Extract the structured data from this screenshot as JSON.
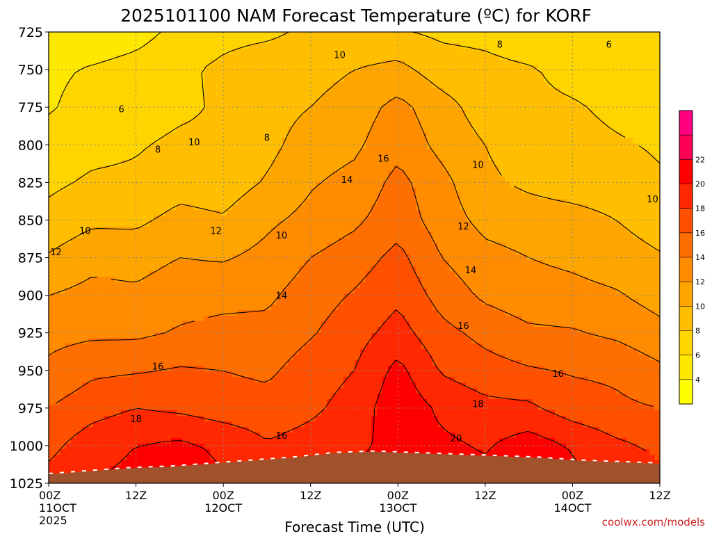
{
  "title": "2025101100 NAM Forecast Temperature (ºC) for KORF",
  "xlabel": "Forecast Time (UTC)",
  "credit": "coolwx.com/models",
  "colors": {
    "terrain": "#a0522d",
    "contour_line": "#000000",
    "grid": "#888888"
  },
  "chart_data": {
    "type": "heatmap",
    "title": "2025101100 NAM Forecast Temperature (ºC) for KORF",
    "xlabel": "Forecast Time (UTC)",
    "ylabel": "",
    "grid": true,
    "legend_placement": "right",
    "y_levels": [
      725,
      750,
      775,
      800,
      825,
      850,
      875,
      900,
      925,
      950,
      975,
      1000,
      1025
    ],
    "ylim": [
      725,
      1025
    ],
    "x_hours": [
      0,
      12,
      24,
      36,
      48,
      60,
      72,
      84
    ],
    "xlim": [
      0,
      84
    ],
    "x_tick_labels": [
      [
        "00Z",
        "11OCT",
        "2025"
      ],
      [
        "12Z"
      ],
      [
        "00Z",
        "12OCT"
      ],
      [
        "12Z"
      ],
      [
        "00Z",
        "13OCT"
      ],
      [
        "12Z"
      ],
      [
        "00Z",
        "14OCT"
      ],
      [
        "12Z"
      ]
    ],
    "colorbar": {
      "levels": [
        2,
        4,
        6,
        8,
        10,
        12,
        14,
        16,
        18,
        20,
        22,
        24
      ],
      "labels": [
        "4",
        "6",
        "8",
        "10",
        "12",
        "14",
        "16",
        "18",
        "20",
        "22"
      ],
      "colors": [
        "#ffff00",
        "#ffe800",
        "#ffd500",
        "#ffbf00",
        "#ffa500",
        "#ff8c00",
        "#ff6e00",
        "#ff5000",
        "#ff2800",
        "#ff0000",
        "#ff0055",
        "#ff0080"
      ]
    },
    "temperature_C": [
      [
        5.5,
        4.5,
        5.2,
        6.6,
        7.4,
        7.6,
        8.4,
        8.4,
        8.2,
        7.6,
        7.4,
        6.6,
        6.5,
        6.6,
        6.8
      ],
      [
        5.6,
        6.2,
        6.8,
        7.6,
        8.4,
        9.2,
        9.2,
        10.0,
        10.6,
        9.0,
        8.6,
        8.2,
        7.4,
        7.0,
        7.0
      ],
      [
        5.8,
        6.8,
        7.0,
        7.6,
        8.3,
        9.2,
        10.0,
        11.0,
        12.6,
        10.8,
        9.0,
        8.4,
        8.2,
        7.6,
        7.2
      ],
      [
        6.8,
        7.4,
        7.8,
        8.4,
        8.4,
        9.4,
        11.0,
        11.6,
        13.4,
        11.4,
        10.0,
        8.8,
        8.6,
        8.2,
        7.8
      ],
      [
        7.6,
        8.3,
        8.4,
        9.2,
        9.0,
        10.2,
        11.8,
        12.6,
        14.6,
        12.6,
        10.4,
        9.6,
        9.0,
        8.8,
        8.2
      ],
      [
        8.6,
        9.6,
        9.6,
        10.6,
        10.2,
        11.6,
        12.6,
        13.6,
        15.2,
        13.0,
        11.4,
        11.0,
        10.8,
        10.0,
        9.0
      ],
      [
        10.2,
        11.4,
        11.2,
        12.0,
        11.8,
        12.6,
        14.0,
        15.0,
        16.6,
        14.0,
        12.6,
        12.0,
        11.6,
        11.0,
        10.2
      ],
      [
        12.0,
        12.6,
        12.4,
        13.2,
        13.4,
        13.6,
        15.0,
        16.2,
        17.6,
        15.2,
        13.6,
        12.8,
        12.6,
        12.2,
        11.2
      ],
      [
        13.4,
        13.6,
        13.6,
        14.2,
        14.6,
        14.6,
        15.8,
        17.2,
        18.8,
        16.6,
        15.4,
        14.4,
        14.2,
        13.6,
        12.6
      ],
      [
        14.4,
        15.6,
        15.8,
        16.2,
        16.0,
        15.6,
        17.0,
        18.0,
        20.6,
        17.8,
        16.8,
        16.2,
        15.8,
        15.6,
        14.4
      ],
      [
        16.0,
        17.2,
        18.0,
        17.6,
        17.0,
        16.8,
        17.6,
        18.8,
        21.4,
        19.6,
        18.6,
        18.4,
        17.0,
        16.4,
        16.0
      ],
      [
        17.4,
        19.2,
        20.0,
        20.4,
        19.6,
        18.2,
        18.8,
        19.6,
        20.6,
        20.4,
        19.8,
        21.0,
        19.8,
        18.4,
        17.6
      ],
      [
        18.8,
        20.0,
        20.6,
        21.2,
        20.2,
        19.4,
        19.8,
        20.4,
        20.8,
        21.0,
        20.6,
        21.6,
        20.6,
        19.4,
        18.6
      ]
    ],
    "contour_labels": [
      {
        "hour": 62,
        "level": 733,
        "text": "8"
      },
      {
        "hour": 77,
        "level": 733,
        "text": "6"
      },
      {
        "hour": 40,
        "level": 740,
        "text": "10"
      },
      {
        "hour": 10,
        "level": 776,
        "text": "6"
      },
      {
        "hour": 30,
        "level": 795,
        "text": "8"
      },
      {
        "hour": 20,
        "level": 798,
        "text": "10"
      },
      {
        "hour": 15,
        "level": 803,
        "text": "8"
      },
      {
        "hour": 46,
        "level": 809,
        "text": "16"
      },
      {
        "hour": 41,
        "level": 823,
        "text": "14"
      },
      {
        "hour": 59,
        "level": 813,
        "text": "10"
      },
      {
        "hour": 83,
        "level": 836,
        "text": "10"
      },
      {
        "hour": 57,
        "level": 854,
        "text": "12"
      },
      {
        "hour": 5,
        "level": 857,
        "text": "10"
      },
      {
        "hour": 23,
        "level": 857,
        "text": "12"
      },
      {
        "hour": 32,
        "level": 860,
        "text": "10"
      },
      {
        "hour": 1,
        "level": 871,
        "text": "12"
      },
      {
        "hour": 58,
        "level": 883,
        "text": "14"
      },
      {
        "hour": 32,
        "level": 900,
        "text": "14"
      },
      {
        "hour": 57,
        "level": 920,
        "text": "16"
      },
      {
        "hour": 15,
        "level": 947,
        "text": "16"
      },
      {
        "hour": 70,
        "level": 952,
        "text": "16"
      },
      {
        "hour": 12,
        "level": 982,
        "text": "18"
      },
      {
        "hour": 59,
        "level": 972,
        "text": "18"
      },
      {
        "hour": 56,
        "level": 995,
        "text": "20"
      },
      {
        "hour": 32,
        "level": 993,
        "text": "16"
      }
    ],
    "surface_pressure_hPa": [
      1019,
      1017,
      1015,
      1014,
      1012,
      1010,
      1008,
      1005,
      1004,
      1005,
      1006,
      1007,
      1008,
      1010,
      1011,
      1012
    ]
  }
}
